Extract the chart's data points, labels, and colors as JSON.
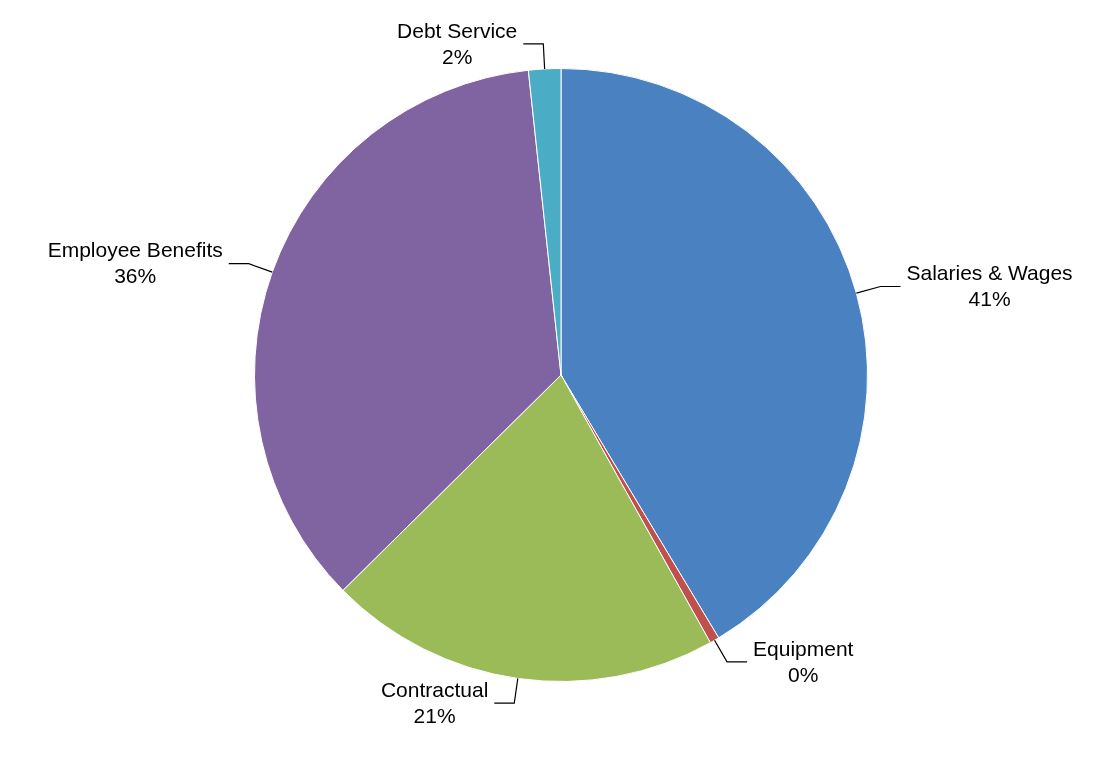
{
  "chart_data": {
    "type": "pie",
    "categories": [
      "Salaries & Wages",
      "Equipment",
      "Contractual",
      "Employee Benefits",
      "Debt Service"
    ],
    "values": [
      41.4,
      0.5,
      20.7,
      35.7,
      1.7
    ],
    "value_labels": [
      "41%",
      "0%",
      "21%",
      "36%",
      "2%"
    ],
    "colors": [
      "#4a81c0",
      "#c0504d",
      "#9bbb59",
      "#8064a2",
      "#4bacc6"
    ],
    "legend": false
  }
}
